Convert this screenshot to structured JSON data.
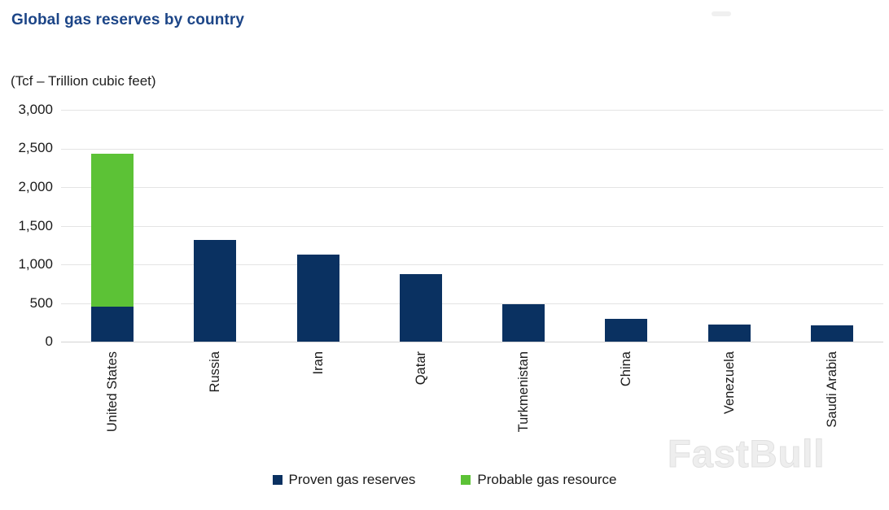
{
  "header": {
    "title": "Global gas reserves by country"
  },
  "chart_data": {
    "type": "bar",
    "stacked": true,
    "title": "Global gas reserves by country",
    "unit_label": "(Tcf – Trillion cubic feet)",
    "xlabel": "",
    "ylabel": "Tcf",
    "categories": [
      "United States",
      "Russia",
      "Iran",
      "Qatar",
      "Turkmenistan",
      "China",
      "Venezuela",
      "Saudi Arabia"
    ],
    "series": [
      {
        "name": "Proven gas reserves",
        "color": "#0A3161",
        "values": [
          450,
          1320,
          1130,
          870,
          480,
          297,
          221,
          210
        ]
      },
      {
        "name": "Probable gas resource",
        "color": "#5CC236",
        "values": [
          1980,
          0,
          0,
          0,
          0,
          0,
          0,
          0
        ]
      }
    ],
    "ylim": [
      0,
      3000
    ],
    "ytick_values": [
      0,
      500,
      1000,
      1500,
      2000,
      2500,
      3000
    ],
    "ytick_labels": [
      "0",
      "500",
      "1,000",
      "1,500",
      "2,000",
      "2,500",
      "3,000"
    ],
    "grid": true,
    "legend_position": "bottom",
    "x_label_rotation_deg": -90
  },
  "watermark": {
    "text": "FastBull"
  }
}
